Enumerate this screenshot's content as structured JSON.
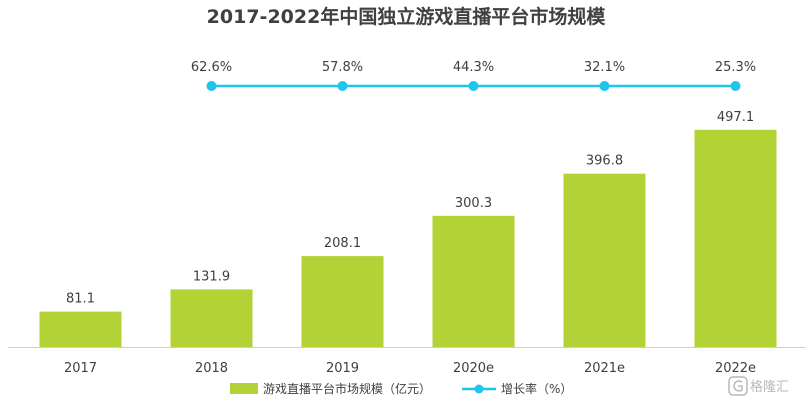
{
  "chart_data": {
    "type": "bar",
    "title": "2017-2022年中国独立游戏直播平台市场规模",
    "categories": [
      "2017",
      "2018",
      "2019",
      "2020e",
      "2021e",
      "2022e"
    ],
    "series": [
      {
        "name": "游戏直播平台市场规模（亿元）",
        "kind": "bar",
        "color": "#b2d235",
        "values": [
          81.1,
          131.9,
          208.1,
          300.3,
          396.8,
          497.1
        ],
        "labels": [
          "81.1",
          "131.9",
          "208.1",
          "300.3",
          "396.8",
          "497.1"
        ]
      },
      {
        "name": "增长率（%）",
        "kind": "line",
        "color": "#1ec6ee",
        "values": [
          null,
          62.6,
          57.8,
          44.3,
          32.1,
          25.3
        ],
        "labels": [
          "",
          "62.6%",
          "57.8%",
          "44.3%",
          "32.1%",
          "25.3%"
        ]
      }
    ],
    "legend_position": "bottom-center",
    "grid": false
  },
  "watermark": {
    "text": "格隆汇"
  }
}
